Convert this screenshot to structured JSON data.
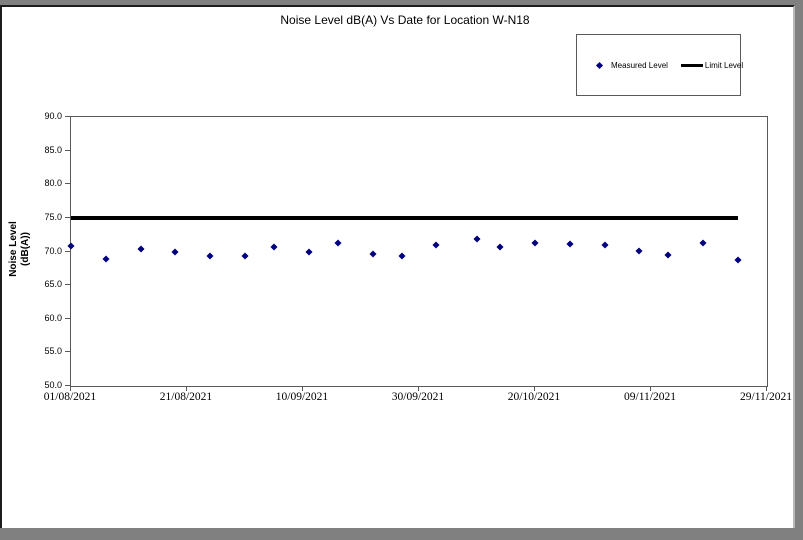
{
  "chart": {
    "title": "Noise Level dB(A) Vs Date for Location W-N18",
    "y_axis_title_line1": "Noise Level",
    "y_axis_title_line2": "(dB(A))",
    "legend": {
      "measured_label": "Measured Level",
      "limit_label": "Limit Level"
    },
    "colors": {
      "measured": "#000080",
      "limit": "#000000"
    }
  },
  "chart_data": {
    "type": "scatter",
    "title": "Noise Level dB(A) Vs Date for Location W-N18",
    "xlabel": "",
    "ylabel": "Noise Level (dB(A))",
    "ylim": [
      50.0,
      90.0
    ],
    "xlim": [
      "01/08/2021",
      "29/11/2021"
    ],
    "yticks": [
      90.0,
      85.0,
      80.0,
      75.0,
      70.0,
      65.0,
      60.0,
      55.0,
      50.0
    ],
    "xticks": [
      "01/08/2021",
      "21/08/2021",
      "10/09/2021",
      "30/09/2021",
      "20/10/2021",
      "09/11/2021",
      "29/11/2021"
    ],
    "grid": false,
    "legend_position": "top-right",
    "series": [
      {
        "name": "Measured Level",
        "type": "scatter",
        "marker": "diamond",
        "color": "#000080",
        "x": [
          "01/08/2021",
          "07/08/2021",
          "13/08/2021",
          "19/08/2021",
          "25/08/2021",
          "31/08/2021",
          "05/09/2021",
          "11/09/2021",
          "16/09/2021",
          "22/09/2021",
          "27/09/2021",
          "03/10/2021",
          "10/10/2021",
          "14/10/2021",
          "20/10/2021",
          "26/10/2021",
          "01/11/2021",
          "07/11/2021",
          "12/11/2021",
          "18/11/2021",
          "24/11/2021"
        ],
        "y": [
          70.8,
          68.9,
          70.4,
          69.9,
          69.3,
          69.3,
          70.6,
          70.0,
          71.3,
          69.6,
          69.3,
          71.0,
          71.8,
          70.7,
          71.2,
          71.1,
          71.0,
          70.1,
          69.5,
          71.2,
          68.7
        ]
      },
      {
        "name": "Limit Level",
        "type": "line",
        "color": "#000000",
        "x": [
          "01/08/2021",
          "24/11/2021"
        ],
        "y": [
          75.0,
          75.0
        ]
      }
    ]
  }
}
